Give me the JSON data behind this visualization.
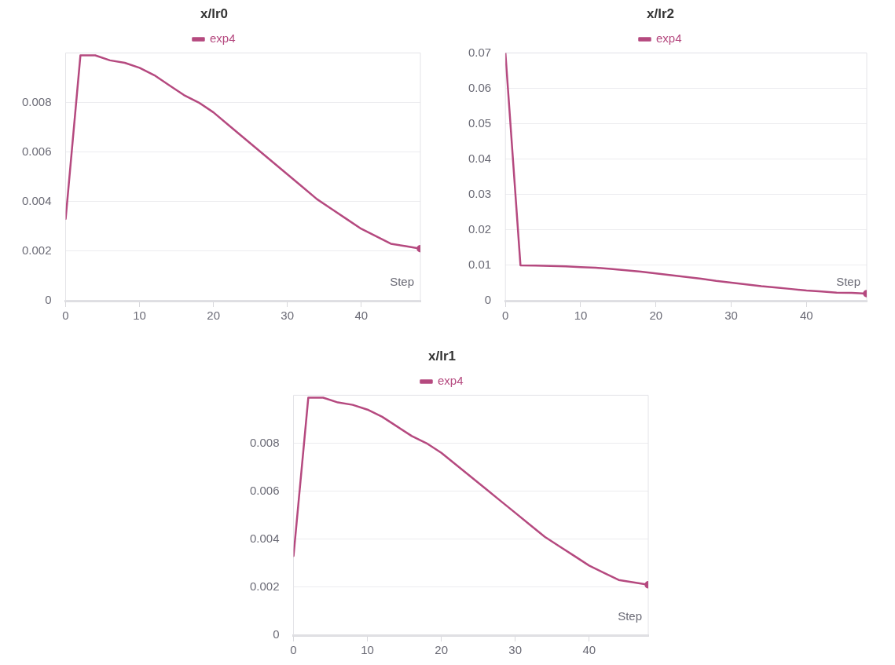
{
  "chart_data": [
    {
      "type": "line",
      "title": "x/lr0",
      "xlabel": "Step",
      "xlim": [
        0,
        48
      ],
      "xticks": [
        0,
        10,
        20,
        30,
        40
      ],
      "ylim": [
        0,
        0.01
      ],
      "yticks": [
        0,
        0.002,
        0.004,
        0.006,
        0.008
      ],
      "grid": "y",
      "legend": "top",
      "marker": "none",
      "line_style": "solid",
      "x": [
        0,
        2,
        4,
        6,
        8,
        10,
        12,
        14,
        16,
        18,
        20,
        22,
        24,
        26,
        28,
        30,
        32,
        34,
        36,
        38,
        40,
        42,
        44,
        46,
        48
      ],
      "series": [
        {
          "name": "exp4",
          "color": "#b5497f",
          "values": [
            0.0033,
            0.0099,
            0.0099,
            0.0097,
            0.0096,
            0.0094,
            0.0091,
            0.0087,
            0.0083,
            0.008,
            0.0076,
            0.0071,
            0.0066,
            0.0061,
            0.0056,
            0.0051,
            0.0046,
            0.0041,
            0.0037,
            0.0033,
            0.0029,
            0.0026,
            0.0023,
            0.0022,
            0.0021
          ]
        }
      ]
    },
    {
      "type": "line",
      "title": "x/lr2",
      "xlabel": "Step",
      "xlim": [
        0,
        48
      ],
      "xticks": [
        0,
        10,
        20,
        30,
        40
      ],
      "ylim": [
        0,
        0.07
      ],
      "yticks": [
        0,
        0.01,
        0.02,
        0.03,
        0.04,
        0.05,
        0.06,
        0.07
      ],
      "grid": "y",
      "legend": "top",
      "marker": "none",
      "line_style": "solid",
      "x": [
        0,
        2,
        4,
        6,
        8,
        10,
        12,
        14,
        16,
        18,
        20,
        22,
        24,
        26,
        28,
        30,
        32,
        34,
        36,
        38,
        40,
        42,
        44,
        46,
        48
      ],
      "series": [
        {
          "name": "exp4",
          "color": "#b5497f",
          "values": [
            0.07,
            0.01,
            0.0099,
            0.0098,
            0.0097,
            0.0095,
            0.0093,
            0.009,
            0.0086,
            0.0082,
            0.0077,
            0.0072,
            0.0067,
            0.0062,
            0.0056,
            0.0051,
            0.0046,
            0.0041,
            0.0037,
            0.0033,
            0.0029,
            0.0026,
            0.0023,
            0.0022,
            0.002
          ]
        }
      ]
    },
    {
      "type": "line",
      "title": "x/lr1",
      "xlabel": "Step",
      "xlim": [
        0,
        48
      ],
      "xticks": [
        0,
        10,
        20,
        30,
        40
      ],
      "ylim": [
        0,
        0.01
      ],
      "yticks": [
        0,
        0.002,
        0.004,
        0.006,
        0.008
      ],
      "grid": "y",
      "legend": "top",
      "marker": "none",
      "line_style": "solid",
      "x": [
        0,
        2,
        4,
        6,
        8,
        10,
        12,
        14,
        16,
        18,
        20,
        22,
        24,
        26,
        28,
        30,
        32,
        34,
        36,
        38,
        40,
        42,
        44,
        46,
        48
      ],
      "series": [
        {
          "name": "exp4",
          "color": "#b5497f",
          "values": [
            0.0033,
            0.0099,
            0.0099,
            0.0097,
            0.0096,
            0.0094,
            0.0091,
            0.0087,
            0.0083,
            0.008,
            0.0076,
            0.0071,
            0.0066,
            0.0061,
            0.0056,
            0.0051,
            0.0046,
            0.0041,
            0.0037,
            0.0033,
            0.0029,
            0.0026,
            0.0023,
            0.0022,
            0.0021
          ]
        }
      ]
    }
  ]
}
